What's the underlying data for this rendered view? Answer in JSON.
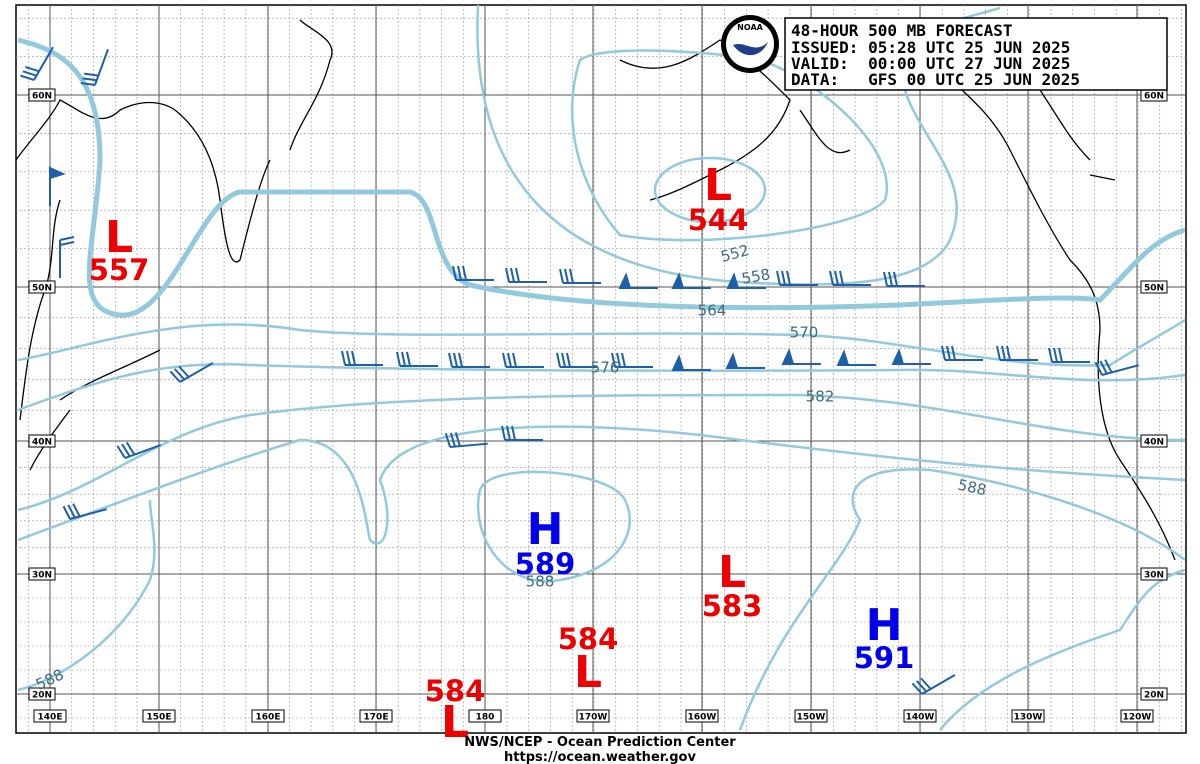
{
  "header": {
    "lines": [
      "48-HOUR 500 MB FORECAST",
      "ISSUED: 05:28 UTC 25 JUN 2025",
      "VALID:  00:00 UTC 27 JUN 2025",
      "DATA:   GFS 00 UTC 25 JUN 2025"
    ]
  },
  "logo": "NOAA",
  "lat_labels": [
    "60N",
    "50N",
    "40N",
    "30N",
    "20N"
  ],
  "lon_labels": [
    "140E",
    "150E",
    "160E",
    "170E",
    "180",
    "170W",
    "160W",
    "150W",
    "140W",
    "130W",
    "120W"
  ],
  "centers": [
    {
      "symbol": "L",
      "value": "557"
    },
    {
      "symbol": "L",
      "value": "544"
    },
    {
      "symbol": "H",
      "value": "589"
    },
    {
      "symbol": "L",
      "value": "583"
    },
    {
      "symbol": "L",
      "value": "584"
    },
    {
      "symbol": "L",
      "value": "584"
    },
    {
      "symbol": "H",
      "value": "591"
    }
  ],
  "contour_labels": [
    "552",
    "558",
    "564",
    "570",
    "576",
    "582",
    "588",
    "588",
    "588"
  ],
  "footer": {
    "line1": "NWS/NCEP - Ocean Prediction Center",
    "line2": "https://ocean.weather.gov"
  }
}
